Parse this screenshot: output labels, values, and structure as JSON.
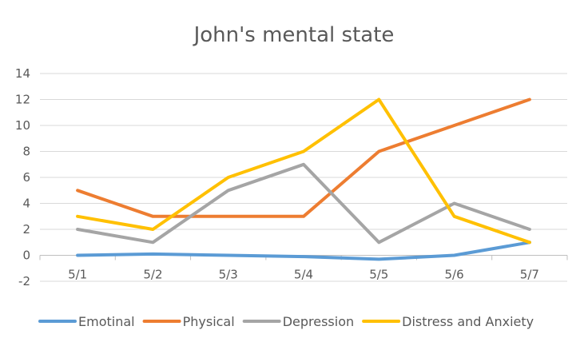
{
  "chart_data": {
    "type": "line",
    "title": "John's mental state",
    "xlabel": "",
    "ylabel": "",
    "categories": [
      "5/1",
      "5/2",
      "5/3",
      "5/4",
      "5/5",
      "5/6",
      "5/7"
    ],
    "ylim": [
      -2,
      14
    ],
    "yticks": [
      "14",
      "12",
      "10",
      "8",
      "6",
      "4",
      "2",
      "0",
      "-2"
    ],
    "ytick_values": [
      14,
      12,
      10,
      8,
      6,
      4,
      2,
      0,
      -2
    ],
    "grid": true,
    "legend_position": "bottom",
    "series": [
      {
        "name": "Emotinal",
        "color": "#5B9BD5",
        "values": [
          0,
          0.1,
          0,
          -0.1,
          -0.3,
          0,
          1
        ]
      },
      {
        "name": "Physical",
        "color": "#ED7D31",
        "values": [
          5,
          3,
          3,
          3,
          8,
          10,
          12
        ]
      },
      {
        "name": "Depression",
        "color": "#A5A5A5",
        "values": [
          2,
          1,
          5,
          7,
          1,
          4,
          2
        ]
      },
      {
        "name": "Distress and Anxiety",
        "color": "#FFC000",
        "values": [
          3,
          2,
          6,
          8,
          12,
          3,
          1
        ]
      }
    ]
  }
}
